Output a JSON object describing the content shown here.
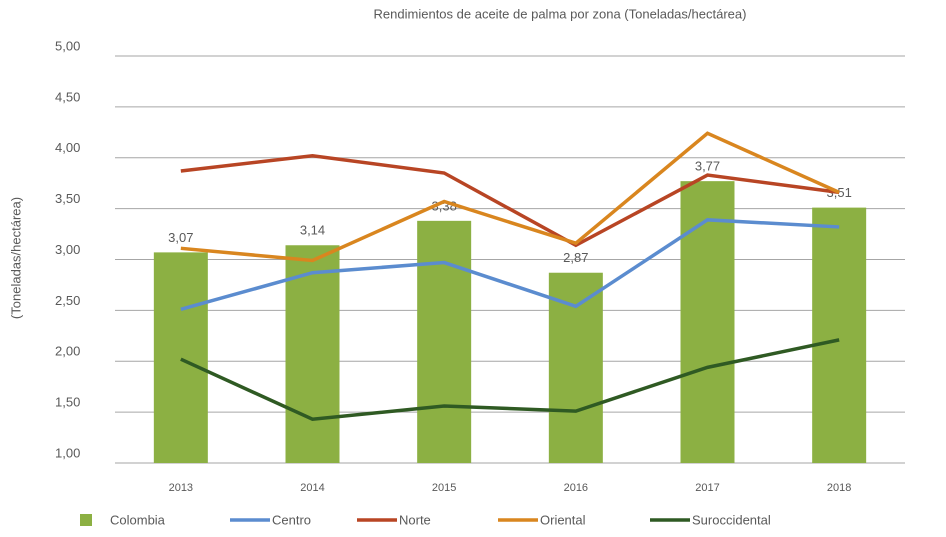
{
  "chart_data": {
    "type": "bar_line",
    "title": "Rendimientos de aceite de palma por zona (Toneladas/hectárea)",
    "y_label": "(Toneladas/hectárea)",
    "categories": [
      "2013",
      "2014",
      "2015",
      "2016",
      "2017",
      "2018"
    ],
    "ylim": [
      1,
      5
    ],
    "yticks": [
      {
        "value": 1,
        "label": "1,00"
      },
      {
        "value": 1.5,
        "label": "1,50"
      },
      {
        "value": 2,
        "label": "2,00"
      },
      {
        "value": 2.5,
        "label": "2,50"
      },
      {
        "value": 3,
        "label": "3,00"
      },
      {
        "value": 3.5,
        "label": "3,50"
      },
      {
        "value": 4,
        "label": "4,00"
      },
      {
        "value": 4.5,
        "label": "4,50"
      },
      {
        "value": 5,
        "label": "5,00"
      }
    ],
    "grid": true,
    "series": [
      {
        "name": "Colombia",
        "type": "bar",
        "color": "#8cb043",
        "values": [
          3.07,
          3.14,
          3.38,
          2.87,
          3.77,
          3.51
        ],
        "value_labels": [
          "3,07",
          "3,14",
          "3,38",
          "2,87",
          "3,77",
          "3,51"
        ]
      },
      {
        "name": "Centro",
        "type": "line",
        "color": "#5b8ccf",
        "values": [
          2.51,
          2.87,
          2.97,
          2.54,
          3.39,
          3.32
        ]
      },
      {
        "name": "Norte",
        "type": "line",
        "color": "#b84524",
        "values": [
          3.87,
          4.02,
          3.85,
          3.14,
          3.83,
          3.66
        ]
      },
      {
        "name": "Oriental",
        "type": "line",
        "color": "#d9861f",
        "values": [
          3.11,
          2.99,
          3.57,
          3.16,
          4.24,
          3.66
        ]
      },
      {
        "name": "Suroccidental",
        "type": "line",
        "color": "#2f5a23",
        "values": [
          2.02,
          1.43,
          1.56,
          1.51,
          1.94,
          2.21
        ]
      }
    ]
  }
}
